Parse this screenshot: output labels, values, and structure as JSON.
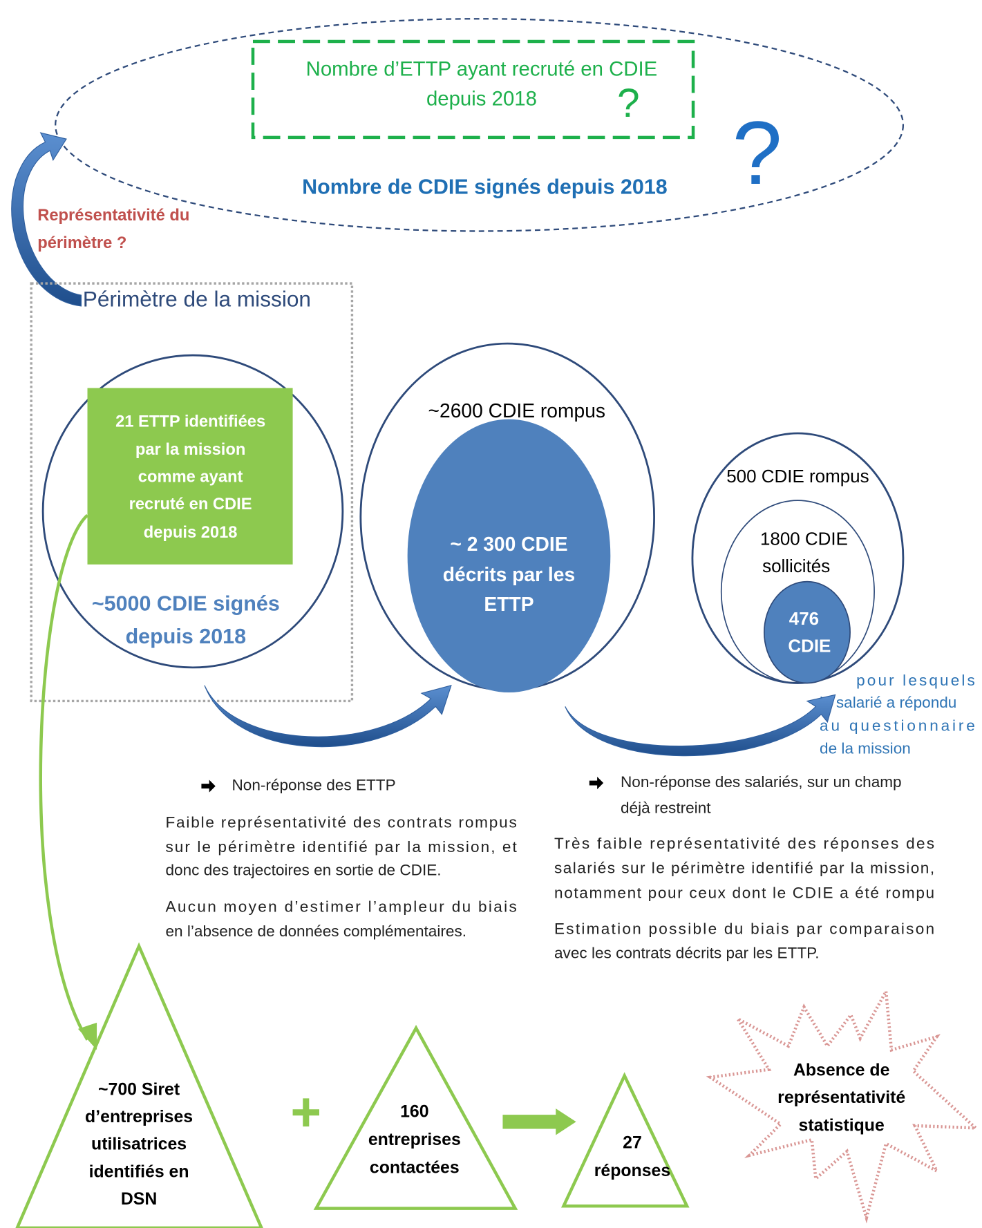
{
  "top": {
    "green_box": [
      "Nombre d’ETTP ayant recruté en CDIE",
      "depuis 2018"
    ],
    "green_question": "?",
    "blue_question": "?",
    "title": "Nombre de CDIE signés depuis 2018"
  },
  "representativity": [
    "Représentativité du",
    "périmètre ?"
  ],
  "perimeter_label": "Périmètre de la mission",
  "circle1": {
    "box": [
      "21 ETTP identifiées",
      "par la mission",
      "comme ayant",
      "recruté en CDIE",
      "depuis 2018"
    ],
    "label": [
      "~5000 CDIE signés",
      "depuis 2018"
    ]
  },
  "circle2": {
    "outer": "~2600 CDIE rompus",
    "inner": [
      "~ 2 300 CDIE",
      "décrits par les",
      "ETTP"
    ]
  },
  "circle3": {
    "outer": "500 CDIE rompus",
    "middle": [
      "1800 CDIE",
      "sollicités"
    ],
    "inner": [
      "476",
      "CDIE"
    ],
    "note": [
      "pour lesquels",
      "le salarié a répondu",
      "au questionnaire",
      "de la mission"
    ]
  },
  "left_text": {
    "bullet": "Non-réponse des ETTP",
    "para1": [
      "Faible représentativité des contrats rompus",
      "sur le périmètre identifié par la mission, et",
      "donc des trajectoires en sortie de CDIE."
    ],
    "para2": [
      "Aucun moyen d’estimer l’ampleur du biais",
      "en l’absence de données complémentaires."
    ]
  },
  "right_text": {
    "bullet": [
      "Non-réponse des salariés, sur un champ",
      "déjà restreint"
    ],
    "para1": [
      "Très faible représentativité des réponses des",
      "salariés sur le périmètre identifié par la mission,",
      "notamment pour ceux dont le CDIE a été rompu"
    ],
    "para2": [
      "Estimation possible du biais par comparaison",
      "avec les contrats décrits par les ETTP."
    ]
  },
  "triangles": {
    "siret": [
      "~700 Siret",
      "d’entreprises",
      "utilisatrices",
      "identifiés en",
      "DSN"
    ],
    "contacted": [
      "160",
      "entreprises",
      "contactées"
    ],
    "responses": [
      "27",
      "réponses"
    ]
  },
  "burst": [
    "Absence de",
    "représentativité",
    "statistique"
  ]
}
